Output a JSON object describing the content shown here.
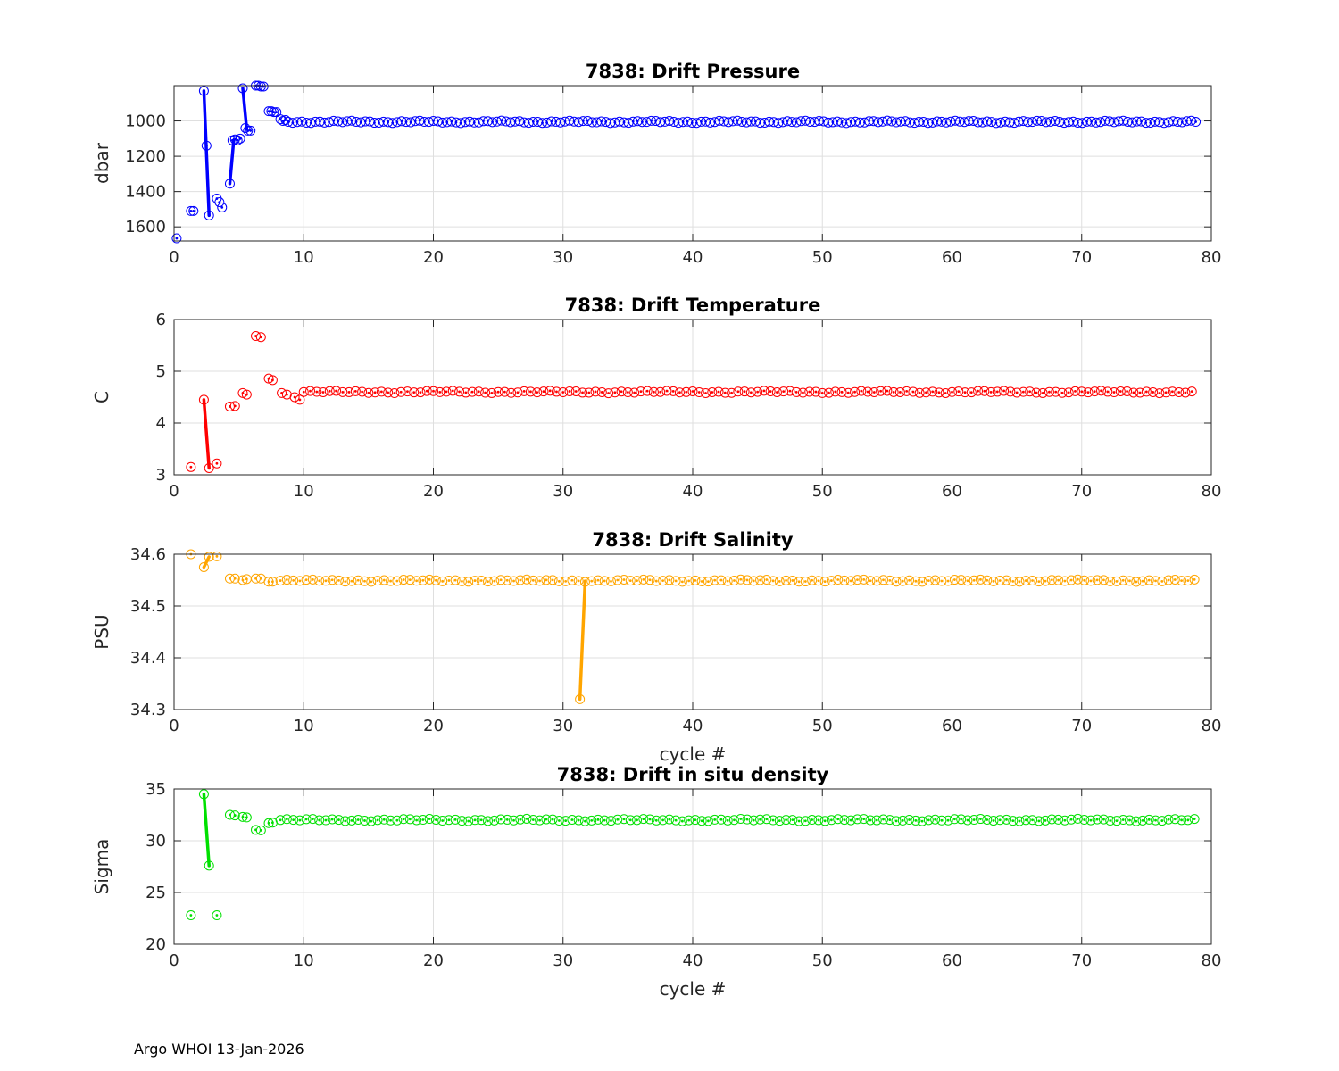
{
  "footer": "Argo WHOI 13-Jan-2026",
  "chart_data": [
    {
      "type": "scatter",
      "title": "7838: Drift Pressure",
      "xlabel": "",
      "ylabel": "dbar",
      "xlim": [
        0,
        80
      ],
      "ylim": [
        800,
        1680
      ],
      "y_reversed": true,
      "xticks": [
        0,
        10,
        20,
        30,
        40,
        50,
        60,
        70,
        80
      ],
      "yticks": [
        1000,
        1200,
        1400,
        1600
      ],
      "grid": true,
      "color": "#0000ff",
      "anomaly_segments": [
        {
          "x": [
            2.3,
            2.7
          ],
          "y": [
            830,
            1535
          ]
        },
        {
          "x": [
            4.3,
            4.6
          ],
          "y": [
            1355,
            1110
          ]
        },
        {
          "x": [
            5.3,
            5.6
          ],
          "y": [
            815,
            1045
          ]
        }
      ],
      "series": [
        {
          "name": "drift pressure",
          "x": [
            0.2,
            1.3,
            1.5,
            2.3,
            2.5,
            2.7,
            3.3,
            3.5,
            3.7,
            4.3,
            4.5,
            4.7,
            4.9,
            5.1,
            5.3,
            5.5,
            5.7,
            5.9,
            6.3,
            6.5,
            6.7,
            6.9,
            7.3,
            7.5,
            7.7,
            7.9,
            8.2,
            8.4,
            8.6
          ],
          "y": [
            1665,
            1510,
            1510,
            830,
            1140,
            1535,
            1440,
            1460,
            1490,
            1355,
            1110,
            1105,
            1110,
            1100,
            815,
            1040,
            1055,
            1055,
            800,
            800,
            805,
            805,
            945,
            945,
            950,
            950,
            990,
            1000,
            995
          ]
        }
      ],
      "steady_state": {
        "x_start": 8.8,
        "x_end": 78.8,
        "step": 0.35,
        "level": 1005
      }
    },
    {
      "type": "scatter",
      "title": "7838: Drift Temperature",
      "xlabel": "",
      "ylabel": "C",
      "xlim": [
        0,
        80
      ],
      "ylim": [
        3,
        6
      ],
      "xticks": [
        0,
        10,
        20,
        30,
        40,
        50,
        60,
        70,
        80
      ],
      "yticks": [
        3,
        4,
        5,
        6
      ],
      "grid": true,
      "color": "#ff0000",
      "anomaly_segments": [
        {
          "x": [
            2.3,
            2.7
          ],
          "y": [
            4.45,
            3.13
          ]
        }
      ],
      "series": [
        {
          "name": "drift temperature",
          "x": [
            1.3,
            2.3,
            2.7,
            3.3,
            4.3,
            4.7,
            5.3,
            5.6,
            6.3,
            6.7,
            7.3,
            7.6,
            8.3,
            8.7,
            9.3,
            9.7
          ],
          "y": [
            3.15,
            4.45,
            3.13,
            3.22,
            4.32,
            4.33,
            4.58,
            4.55,
            5.68,
            5.66,
            4.86,
            4.83,
            4.58,
            4.55,
            4.5,
            4.45
          ]
        }
      ],
      "steady_state": {
        "x_start": 10.0,
        "x_end": 78.8,
        "step": 0.5,
        "level": 4.6
      }
    },
    {
      "type": "scatter",
      "title": "7838: Drift Salinity",
      "xlabel": "cycle #",
      "ylabel": "PSU",
      "xlim": [
        0,
        80
      ],
      "ylim": [
        34.3,
        34.6
      ],
      "xticks": [
        0,
        10,
        20,
        30,
        40,
        50,
        60,
        70,
        80
      ],
      "yticks": [
        34.3,
        34.4,
        34.5,
        34.6
      ],
      "grid": true,
      "color": "#ffa500",
      "anomaly_segments": [
        {
          "x": [
            2.3,
            2.7
          ],
          "y": [
            34.575,
            34.595
          ]
        },
        {
          "x": [
            31.3,
            31.7
          ],
          "y": [
            34.32,
            34.548
          ]
        }
      ],
      "series": [
        {
          "name": "drift salinity",
          "x": [
            1.3,
            2.3,
            2.7,
            3.3,
            4.3,
            4.7,
            5.3,
            5.6,
            6.3,
            6.7,
            7.3,
            7.6,
            31.3
          ],
          "y": [
            34.6,
            34.575,
            34.595,
            34.596,
            34.553,
            34.553,
            34.55,
            34.552,
            34.553,
            34.553,
            34.547,
            34.547,
            34.32
          ]
        }
      ],
      "steady_state": {
        "x_start": 8.2,
        "x_end": 78.8,
        "step": 0.5,
        "level": 34.549
      }
    },
    {
      "type": "scatter",
      "title": "7838: Drift in situ density",
      "xlabel": "cycle #",
      "ylabel": "Sigma",
      "xlim": [
        0,
        80
      ],
      "ylim": [
        20,
        35
      ],
      "xticks": [
        0,
        10,
        20,
        30,
        40,
        50,
        60,
        70,
        80
      ],
      "yticks": [
        20,
        25,
        30,
        35
      ],
      "grid": true,
      "color": "#00e000",
      "anomaly_segments": [
        {
          "x": [
            2.3,
            2.7
          ],
          "y": [
            34.5,
            27.6
          ]
        }
      ],
      "series": [
        {
          "name": "drift in situ density",
          "x": [
            1.3,
            2.3,
            2.7,
            3.3,
            4.3,
            4.7,
            5.3,
            5.6,
            6.3,
            6.7,
            7.3,
            7.6
          ],
          "y": [
            22.8,
            34.5,
            27.6,
            22.8,
            32.5,
            32.45,
            32.3,
            32.25,
            31.05,
            31.0,
            31.7,
            31.75
          ]
        }
      ],
      "steady_state": {
        "x_start": 8.2,
        "x_end": 78.8,
        "step": 0.5,
        "level": 32.0
      }
    }
  ]
}
